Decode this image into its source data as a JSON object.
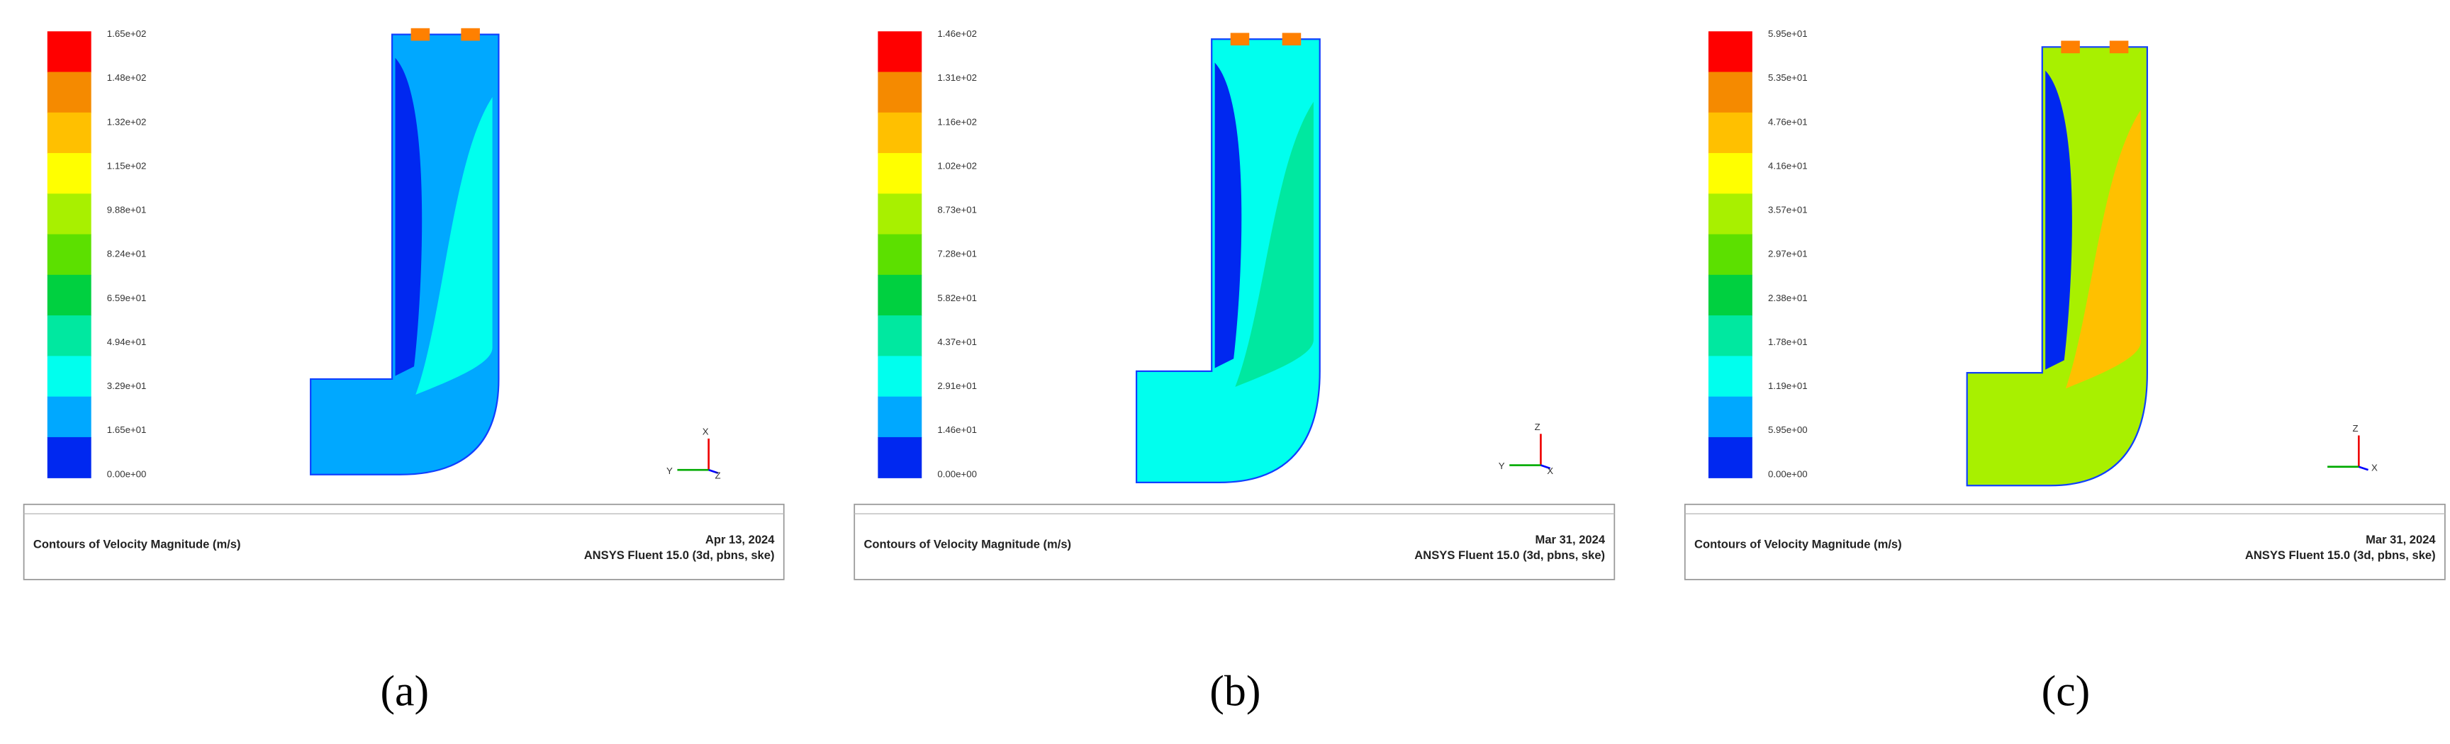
{
  "panels": [
    {
      "colorbar": [
        "1.65e+02",
        "1.48e+02",
        "1.32e+02",
        "1.15e+02",
        "9.88e+01",
        "8.24e+01",
        "6.59e+01",
        "4.94e+01",
        "3.29e+01",
        "1.65e+01",
        "0.00e+00"
      ],
      "title": "Contours of Velocity Magnitude (m/s)",
      "date": "Apr 13, 2024",
      "software": "ANSYS Fluent 15.0 (3d, pbns, ske)",
      "axes": [
        "X",
        "Y",
        "Z"
      ],
      "label": "(a)"
    },
    {
      "colorbar": [
        "1.46e+02",
        "1.31e+02",
        "1.16e+02",
        "1.02e+02",
        "8.73e+01",
        "7.28e+01",
        "5.82e+01",
        "4.37e+01",
        "2.91e+01",
        "1.46e+01",
        "0.00e+00"
      ],
      "title": "Contours of Velocity Magnitude (m/s)",
      "date": "Mar 31, 2024",
      "software": "ANSYS Fluent 15.0 (3d, pbns, ske)",
      "axes": [
        "Z",
        "Y",
        "X"
      ],
      "label": "(b)"
    },
    {
      "colorbar": [
        "5.95e+01",
        "5.35e+01",
        "4.76e+01",
        "4.16e+01",
        "3.57e+01",
        "2.97e+01",
        "2.38e+01",
        "1.78e+01",
        "1.19e+01",
        "5.95e+00",
        "0.00e+00"
      ],
      "title": "Contours of Velocity Magnitude (m/s)",
      "date": "Mar 31, 2024",
      "software": "ANSYS Fluent 15.0 (3d, pbns, ske)",
      "axes": [
        "Z",
        "X"
      ],
      "label": "(c)"
    }
  ]
}
